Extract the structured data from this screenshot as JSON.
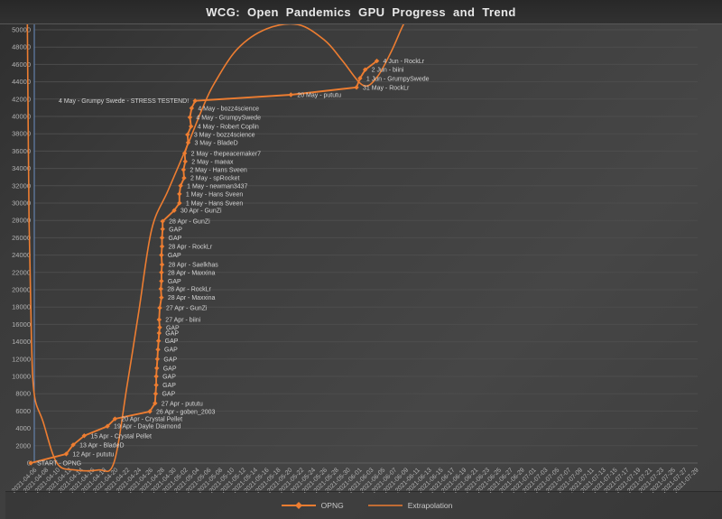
{
  "title": "WCG: Open Pandemics GPU Progress and Trend",
  "legend": {
    "opng": "OPNG",
    "extrapolation": "Extrapolation"
  },
  "colors": {
    "series": "#ED7D31",
    "grid": "#4d4d4d",
    "zero_line": "#606060",
    "y_axis_line": "#6b8fc2",
    "tick_text": "#b3b3b3",
    "label_text": "#d4d4d4",
    "title_text": "#e9e9e9"
  },
  "axes": {
    "y": {
      "min": 0,
      "max": 50000,
      "step": 2000,
      "tick_labels": [
        "0",
        "2000",
        "4000",
        "6000",
        "8000",
        "10000",
        "12000",
        "14000",
        "16000",
        "18000",
        "20000",
        "22000",
        "24000",
        "26000",
        "28000",
        "30000",
        "32000",
        "34000",
        "36000",
        "38000",
        "40000",
        "42000",
        "44000",
        "46000",
        "48000",
        "50000"
      ]
    },
    "x": {
      "step_days": 2,
      "tick_labels": [
        "2021-04-06",
        "2021-04-08",
        "2021-04-10",
        "2021-04-12",
        "2021-04-14",
        "2021-04-16",
        "2021-04-18",
        "2021-04-20",
        "2021-04-22",
        "2021-04-24",
        "2021-04-26",
        "2021-04-28",
        "2021-04-30",
        "2021-05-02",
        "2021-05-04",
        "2021-05-06",
        "2021-05-08",
        "2021-05-10",
        "2021-05-12",
        "2021-05-14",
        "2021-05-16",
        "2021-05-18",
        "2021-05-20",
        "2021-05-22",
        "2021-05-24",
        "2021-05-26",
        "2021-05-28",
        "2021-05-30",
        "2021-06-01",
        "2021-06-03",
        "2021-06-05",
        "2021-06-07",
        "2021-06-09",
        "2021-06-11",
        "2021-06-13",
        "2021-06-15",
        "2021-06-17",
        "2021-06-19",
        "2021-06-21",
        "2021-06-23",
        "2021-06-25",
        "2021-06-27",
        "2021-06-29",
        "2021-07-01",
        "2021-07-03",
        "2021-07-05",
        "2021-07-07",
        "2021-07-09",
        "2021-07-11",
        "2021-07-13",
        "2021-07-15",
        "2021-07-17",
        "2021-07-19",
        "2021-07-21",
        "2021-07-23",
        "2021-07-25",
        "2021-07-27",
        "2021-07-29"
      ]
    }
  },
  "chart_data": {
    "type": "line",
    "title": "WCG: Open Pandemics GPU Progress and Trend",
    "xlabel": "",
    "ylabel": "",
    "ylim": [
      0,
      50000
    ],
    "x_start_date": "2021-04-06",
    "legend_position": "bottom",
    "grid": "horizontal",
    "series": [
      {
        "name": "OPNG",
        "style": "line-with-diamond-markers",
        "points": [
          {
            "day": -0.6,
            "value": 0,
            "label": "START - OPNG"
          },
          {
            "day": 5.5,
            "value": 1050,
            "label": "12 Apr - pututu"
          },
          {
            "day": 6.7,
            "value": 2100,
            "label": "13 Apr - BladeD"
          },
          {
            "day": 8.6,
            "value": 3150,
            "label": "15 Apr - Crystal Pellet"
          },
          {
            "day": 12.6,
            "value": 4250,
            "label": "19 Apr - Dayle Diamond"
          },
          {
            "day": 13.9,
            "value": 5100,
            "label": "20 Apr - Crystal Pellet"
          },
          {
            "day": 19.9,
            "value": 5950,
            "label": "26 Apr - goben_2003"
          },
          {
            "day": 20.8,
            "value": 6900,
            "label": "27 Apr - pututu"
          },
          {
            "day": 20.9,
            "value": 8000,
            "label": "GAP"
          },
          {
            "day": 21.0,
            "value": 9000,
            "label": "GAP"
          },
          {
            "day": 21.0,
            "value": 10000,
            "label": "GAP"
          },
          {
            "day": 21.1,
            "value": 10950,
            "label": "GAP"
          },
          {
            "day": 21.2,
            "value": 12000,
            "label": "GAP"
          },
          {
            "day": 21.3,
            "value": 13100,
            "label": "GAP"
          },
          {
            "day": 21.4,
            "value": 14100,
            "label": "GAP"
          },
          {
            "day": 21.5,
            "value": 15000,
            "label": "GAP"
          },
          {
            "day": 21.6,
            "value": 15650,
            "label": "GAP"
          },
          {
            "day": 21.5,
            "value": 16550,
            "label": "27 Apr - biini"
          },
          {
            "day": 21.6,
            "value": 17900,
            "label": "27 Apr - GunZi"
          },
          {
            "day": 21.9,
            "value": 19100,
            "label": "28 Apr - Maxxina"
          },
          {
            "day": 21.8,
            "value": 20100,
            "label": "28 Apr - RockLr"
          },
          {
            "day": 21.9,
            "value": 21000,
            "label": "GAP"
          },
          {
            "day": 21.9,
            "value": 22000,
            "label": "28 Apr - Maxxina"
          },
          {
            "day": 22.0,
            "value": 22900,
            "label": "28 Apr - Saelkhas"
          },
          {
            "day": 21.9,
            "value": 24000,
            "label": "GAP"
          },
          {
            "day": 22.0,
            "value": 25000,
            "label": "28 Apr - RockLr"
          },
          {
            "day": 22.0,
            "value": 26000,
            "label": "GAP"
          },
          {
            "day": 22.1,
            "value": 27000,
            "label": "GAP"
          },
          {
            "day": 22.1,
            "value": 27900,
            "label": "28 Apr - GunZi"
          },
          {
            "day": 24.1,
            "value": 29150,
            "label": "30 Apr - GunZi"
          },
          {
            "day": 25.0,
            "value": 30000,
            "label": "1 May - Hans Sveen"
          },
          {
            "day": 25.0,
            "value": 31050,
            "label": "1 May - Hans Sveen"
          },
          {
            "day": 25.2,
            "value": 32000,
            "label": "1 May - newman3437"
          },
          {
            "day": 25.8,
            "value": 32900,
            "label": "2 May - spRocket"
          },
          {
            "day": 25.7,
            "value": 33850,
            "label": "2 May - Hans Sveen"
          },
          {
            "day": 26.0,
            "value": 34800,
            "label": "2 May - maeax"
          },
          {
            "day": 25.9,
            "value": 35750,
            "label": "2 May - thepeacemaker7"
          },
          {
            "day": 26.5,
            "value": 36980,
            "label": "3 May - BladeD"
          },
          {
            "day": 26.4,
            "value": 37900,
            "label": "3 May - bozz4science"
          },
          {
            "day": 27.0,
            "value": 38850,
            "label": "4 May - Robert Coplin"
          },
          {
            "day": 26.8,
            "value": 39900,
            "label": "4 May - GrumpySwede"
          },
          {
            "day": 27.1,
            "value": 40950,
            "label": "4 May - bozz4science"
          },
          {
            "day": 27.7,
            "value": 41800,
            "label": "4 May - Grumpy Swede - STRESS TESTEND!",
            "side": "left"
          },
          {
            "day": 44.2,
            "value": 42500,
            "label": "20 May - pututu"
          },
          {
            "day": 55.5,
            "value": 43350,
            "label": "31 May - RockLr"
          },
          {
            "day": 56.1,
            "value": 44400,
            "label": "1 Jun - GrumpySwede"
          },
          {
            "day": 57.0,
            "value": 45400,
            "label": "2 Jun - biini"
          },
          {
            "day": 59.0,
            "value": 46400,
            "label": "4 Jun - RockLr"
          }
        ]
      },
      {
        "name": "Extrapolation",
        "style": "smooth-trend-curve",
        "approx_samples": [
          {
            "day": -1.2,
            "value": 51000
          },
          {
            "day": -0.9,
            "value": 28000
          },
          {
            "day": -0.5,
            "value": 14500
          },
          {
            "day": 0,
            "value": 7900
          },
          {
            "day": 1.5,
            "value": 4800
          },
          {
            "day": 3.9,
            "value": 0
          },
          {
            "day": 7,
            "value": -800
          },
          {
            "day": 11,
            "value": -800
          },
          {
            "day": 13.7,
            "value": 0
          },
          {
            "day": 16,
            "value": 9000
          },
          {
            "day": 18,
            "value": 17500
          },
          {
            "day": 20.2,
            "value": 26900
          },
          {
            "day": 23,
            "value": 31400
          },
          {
            "day": 26.4,
            "value": 36700
          },
          {
            "day": 29,
            "value": 41000
          },
          {
            "day": 31,
            "value": 43800
          },
          {
            "day": 35,
            "value": 47800
          },
          {
            "day": 40,
            "value": 50100
          },
          {
            "day": 45.4,
            "value": 50600
          },
          {
            "day": 50,
            "value": 48800
          },
          {
            "day": 53,
            "value": 46500
          },
          {
            "day": 56.6,
            "value": 43600
          },
          {
            "day": 59,
            "value": 44500
          },
          {
            "day": 61.5,
            "value": 47500
          },
          {
            "day": 63.5,
            "value": 50500
          },
          {
            "day": 65.2,
            "value": 52500
          }
        ]
      }
    ]
  }
}
